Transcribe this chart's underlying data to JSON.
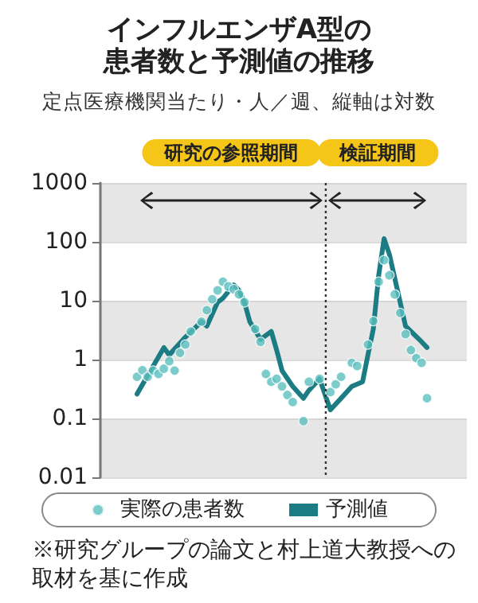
{
  "chart_data": {
    "type": "line",
    "title": "インフルエンザA型の患者数と予測値の推移",
    "subtitle": "定点医療機関当たり・人／週、縦軸は対数",
    "categories": [
      null,
      null,
      null,
      null,
      null,
      null,
      null,
      null,
      null,
      null,
      null,
      null,
      null,
      null,
      null,
      null,
      null,
      null,
      null,
      null,
      null,
      null,
      null,
      null,
      null,
      null,
      null,
      null,
      null,
      null,
      null,
      null,
      null,
      null,
      null,
      null,
      null,
      null,
      null,
      null,
      null,
      null,
      null,
      null,
      null,
      null,
      null,
      null,
      null,
      null,
      null,
      null,
      null,
      null,
      null
    ],
    "ylim": [
      0.01,
      1000
    ],
    "yticks": [
      0.01,
      0.1,
      1,
      10,
      100,
      1000
    ],
    "log": "y",
    "grid": "y",
    "tick_labels": "y",
    "legend": "bottom",
    "series": [
      {
        "name": "実際の患者数",
        "type": "scatter",
        "marker": "circle",
        "color": "#5bbfbf",
        "values": [
          0.51,
          0.66,
          0.51,
          0.65,
          0.57,
          0.7,
          0.94,
          0.65,
          1.3,
          1.8,
          3.0,
          null,
          4.4,
          6.9,
          10.6,
          15,
          21,
          17.5,
          15.7,
          12.8,
          9.4,
          null,
          3.3,
          2.0,
          0.57,
          0.42,
          0.47,
          0.35,
          0.25,
          0.19,
          null,
          0.09,
          0.42,
          null,
          0.47,
          null,
          0.28,
          0.38,
          0.51,
          null,
          0.88,
          0.78,
          null,
          1.8,
          4.5,
          21,
          49,
          27,
          12.8,
          6.2,
          2.7,
          1.45,
          1.06,
          0.88,
          0.22
        ]
      },
      {
        "name": "予測値",
        "line_style": "solid",
        "color": "#1b7c84",
        "values": [
          0.26,
          null,
          null,
          null,
          null,
          1.6,
          1.2,
          null,
          null,
          2.4,
          null,
          null,
          4.4,
          3.7,
          null,
          9.4,
          11,
          null,
          18.6,
          15,
          9.4,
          4.4,
          null,
          2.2,
          null,
          3,
          1.45,
          0.65,
          null,
          0.35,
          null,
          0.22,
          0.3,
          null,
          0.47,
          null,
          0.14,
          null,
          0.22,
          null,
          0.35,
          null,
          0.42,
          1.2,
          3.3,
          27,
          113,
          61,
          null,
          9.4,
          3.7,
          null,
          null,
          2,
          1.6
        ]
      }
    ],
    "annotations": [
      "研究の参照期間",
      "検証期間",
      "※研究グループの論文と村上道大教授への取材を基に作成"
    ]
  }
}
